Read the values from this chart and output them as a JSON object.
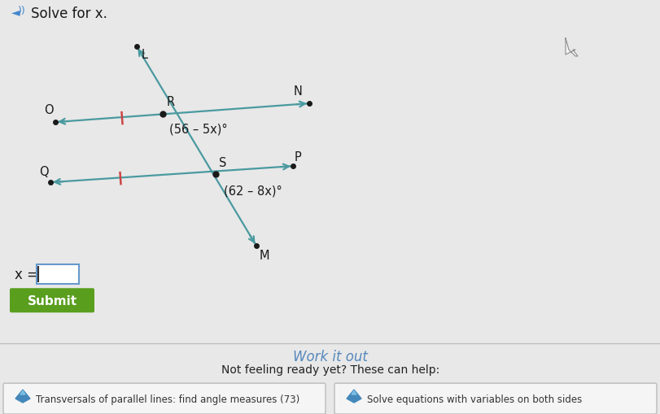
{
  "bg_color": "#e8e8e8",
  "title": "Solve for x.",
  "title_fontsize": 12,
  "line_color": "#4a9aa0",
  "tick_color": "#cc4444",
  "point_color": "#1a1a1a",
  "label_color": "#1a1a1a",
  "angle1_label": "(56 – 5x)°",
  "angle2_label": "(62 – 8x)°",
  "submit_bg": "#5a9e1e",
  "submit_text": "Submit",
  "submit_text_color": "#ffffff",
  "work_it_out": "Work it out",
  "not_feeling": "Not feeling ready yet? These can help:",
  "help1": "Transversals of parallel lines: find angle measures (73)",
  "help2": "Solve equations with variables on both sides",
  "x_eq_label": "x =",
  "bottom_bg": "#dcdcdc",
  "help_btn_bg": "#f0f0f0",
  "work_color": "#5588bb",
  "icon_color": "#4488bb"
}
